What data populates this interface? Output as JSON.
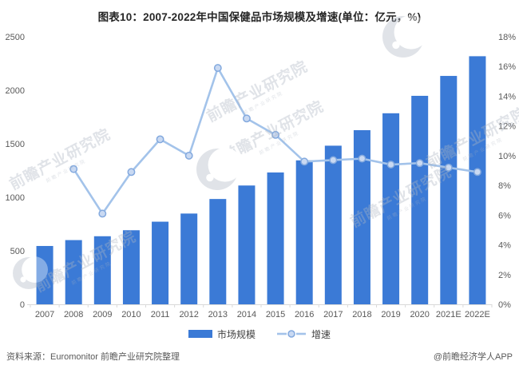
{
  "chart": {
    "title": "图表10：2007-2022年中国保健品市场规模及增速(单位：亿元，%)",
    "legend": [
      "市场规模",
      "增速"
    ]
  },
  "chart_data": {
    "type": "bar",
    "categories": [
      "2007",
      "2008",
      "2009",
      "2010",
      "2011",
      "2012",
      "2013",
      "2014",
      "2015",
      "2016",
      "2017",
      "2018",
      "2019",
      "2020",
      "2021E",
      "2022E"
    ],
    "series": [
      {
        "name": "市场规模",
        "type": "bar",
        "axis": "left",
        "unit": "亿元",
        "values": [
          545,
          600,
          636,
          692,
          772,
          848,
          984,
          1110,
          1232,
          1345,
          1482,
          1627,
          1785,
          1948,
          2134,
          2318
        ]
      },
      {
        "name": "增速",
        "type": "line",
        "axis": "right",
        "unit": "%",
        "values": [
          null,
          9.1,
          6.1,
          8.9,
          11.1,
          10.0,
          15.9,
          12.5,
          11.4,
          9.6,
          9.7,
          9.8,
          9.4,
          9.5,
          9.2,
          8.9
        ]
      }
    ],
    "left_axis": {
      "min": 0,
      "max": 2500,
      "step": 500,
      "ticks": [
        "0",
        "500",
        "1000",
        "1500",
        "2000",
        "2500"
      ]
    },
    "right_axis": {
      "min": 0,
      "max": 18,
      "step": 2,
      "ticks": [
        "0%",
        "2%",
        "4%",
        "6%",
        "8%",
        "10%",
        "12%",
        "14%",
        "16%",
        "18%"
      ]
    },
    "grid": false,
    "legend_position": "bottom",
    "title": "图表10：2007-2022年中国保健品市场规模及增速(单位：亿元，%)",
    "xlabel": "",
    "ylabel_left": "亿元",
    "ylabel_right": "%"
  },
  "colors": {
    "bar": "#3B7AD6",
    "line": "#A3C3EA",
    "marker_fill": "#C9D9F2",
    "marker_stroke": "#83A9DE",
    "axis_text": "#595959",
    "axis_line": "#D9D9D9",
    "title_text": "#262626",
    "watermark": "#AEB6C2"
  },
  "watermark": {
    "text": "前瞻产业研究院",
    "subtext": "前瞻产业研究院"
  },
  "footer": {
    "source": "资料来源：Euromonitor 前瞻产业研究院整理",
    "credit": "@前瞻经济学人APP"
  }
}
